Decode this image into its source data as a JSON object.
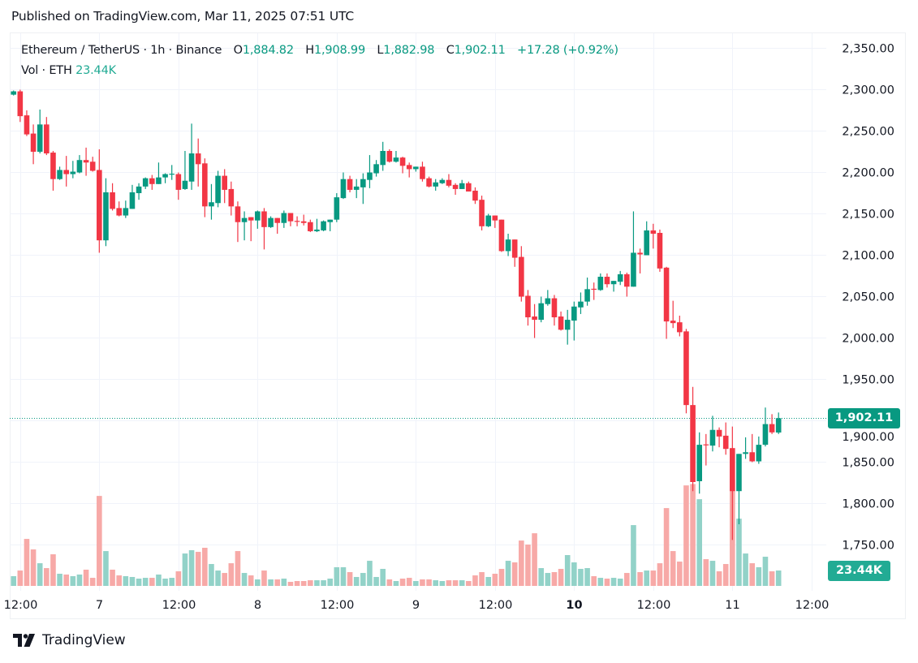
{
  "header": {
    "published": "Published on TradingView.com, Mar 11, 2025 07:51 UTC"
  },
  "legend": {
    "symbol": "Ethereum / TetherUS · 1h · Binance",
    "open_label": "O",
    "open": "1,884.82",
    "high_label": "H",
    "high": "1,908.99",
    "low_label": "L",
    "low": "1,882.98",
    "close_label": "C",
    "close": "1,902.11",
    "change": "+17.28 (+0.92%)",
    "volume_label": "Vol · ETH",
    "volume": "23.44K"
  },
  "colors": {
    "up": "#089981",
    "down": "#F23645",
    "up_volume": "#92d2c8",
    "down_volume": "#f7a9a7",
    "price_badge": "#089981",
    "volume_badge": "#22ab94"
  },
  "footer": {
    "logo_text": "TradingView",
    "logo_icon": "tradingview-logo-icon"
  },
  "chart_data": {
    "type": "candlestick",
    "title": "",
    "interval": "1h",
    "grid": true,
    "ylim": [
      1700,
      2370
    ],
    "y_ticks": [
      "2,350.00",
      "2,300.00",
      "2,250.00",
      "2,200.00",
      "2,150.00",
      "2,100.00",
      "2,050.00",
      "2,000.00",
      "1,950.00",
      "1,900.00",
      "1,850.00",
      "1,800.00",
      "1,750.00"
    ],
    "y_tick_values": [
      2350,
      2300,
      2250,
      2200,
      2150,
      2100,
      2050,
      2000,
      1950,
      1900,
      1850,
      1800,
      1750
    ],
    "x_ticks": [
      "12:00",
      "7",
      "12:00",
      "8",
      "12:00",
      "9",
      "12:00",
      "10",
      "12:00",
      "11",
      "12:00"
    ],
    "last_price": 1902.11,
    "last_price_label": "1,902.11",
    "last_volume_label": "23.44K",
    "fields": [
      "open",
      "high",
      "low",
      "close",
      "volume_k"
    ],
    "candles": [
      [
        2293,
        2298,
        2292,
        2297,
        14.8
      ],
      [
        2297,
        2299,
        2260,
        2267,
        23.4
      ],
      [
        2268,
        2274,
        2243,
        2245,
        71.5
      ],
      [
        2246,
        2257,
        2209,
        2224,
        55.5
      ],
      [
        2224,
        2275,
        2222,
        2257,
        34.5
      ],
      [
        2257,
        2266,
        2220,
        2222,
        27.1
      ],
      [
        2223,
        2225,
        2177,
        2191,
        48.1
      ],
      [
        2191,
        2206,
        2190,
        2202,
        18.5
      ],
      [
        2202,
        2219,
        2182,
        2197,
        17.3
      ],
      [
        2197,
        2213,
        2192,
        2200,
        14.8
      ],
      [
        2199,
        2220,
        2198,
        2214,
        17.3
      ],
      [
        2214,
        2229,
        2195,
        2211,
        24.7
      ],
      [
        2212,
        2218,
        2200,
        2201,
        12.3
      ],
      [
        2202,
        2227,
        2102,
        2117,
        136.9
      ],
      [
        2117,
        2192,
        2110,
        2175,
        53
      ],
      [
        2175,
        2186,
        2153,
        2155,
        24.7
      ],
      [
        2156,
        2164,
        2146,
        2147,
        16
      ],
      [
        2147,
        2165,
        2144,
        2156,
        14.8
      ],
      [
        2155,
        2184,
        2155,
        2175,
        13.6
      ],
      [
        2174,
        2186,
        2166,
        2182,
        11.1
      ],
      [
        2182,
        2193,
        2179,
        2192,
        12.3
      ],
      [
        2192,
        2196,
        2178,
        2185,
        12.3
      ],
      [
        2185,
        2211,
        2185,
        2193,
        17.3
      ],
      [
        2193,
        2198,
        2186,
        2197,
        11.1
      ],
      [
        2197,
        2208,
        2190,
        2197.5,
        12.3
      ],
      [
        2197,
        2199,
        2166,
        2178,
        22.2
      ],
      [
        2179,
        2225,
        2178,
        2189,
        49.3
      ],
      [
        2188,
        2258,
        2178,
        2222,
        54.3
      ],
      [
        2222,
        2240,
        2182,
        2209,
        51.8
      ],
      [
        2210,
        2216,
        2145,
        2158,
        58
      ],
      [
        2158,
        2185,
        2142,
        2163,
        33.3
      ],
      [
        2162,
        2201,
        2157,
        2195,
        23.4
      ],
      [
        2195,
        2203,
        2162,
        2178,
        19.7
      ],
      [
        2179,
        2188,
        2147,
        2158,
        34.5
      ],
      [
        2158,
        2164,
        2115,
        2139,
        53
      ],
      [
        2139,
        2152,
        2117,
        2144,
        19.7
      ],
      [
        2145,
        2145,
        2116,
        2141,
        16
      ],
      [
        2141,
        2153,
        2131,
        2152,
        9.9
      ],
      [
        2152,
        2156,
        2106,
        2133,
        23.4
      ],
      [
        2133,
        2146,
        2132,
        2144,
        9.9
      ],
      [
        2144,
        2144,
        2125,
        2138,
        9.9
      ],
      [
        2138,
        2153,
        2132,
        2150,
        11.1
      ],
      [
        2150,
        2150,
        2134,
        2140,
        6.2
      ],
      [
        2140.5,
        2146,
        2134,
        2140,
        7.4
      ],
      [
        2140,
        2148,
        2135,
        2138,
        7.4
      ],
      [
        2139,
        2142,
        2127,
        2128,
        8.6
      ],
      [
        2128,
        2143,
        2127,
        2130,
        8.6
      ],
      [
        2129,
        2141,
        2128,
        2140,
        8.6
      ],
      [
        2139,
        2142,
        2128,
        2142,
        11.1
      ],
      [
        2142,
        2174,
        2139,
        2169,
        28.4
      ],
      [
        2168,
        2199,
        2167,
        2191,
        28.4
      ],
      [
        2191,
        2195,
        2175,
        2178,
        21
      ],
      [
        2178,
        2191,
        2168,
        2182,
        13.6
      ],
      [
        2181,
        2198,
        2161,
        2191,
        19.7
      ],
      [
        2190,
        2220,
        2180,
        2199,
        38.2
      ],
      [
        2198,
        2214,
        2194,
        2209,
        13.6
      ],
      [
        2208,
        2236,
        2201,
        2225,
        25.9
      ],
      [
        2225,
        2227,
        2211,
        2212,
        9.9
      ],
      [
        2212,
        2225,
        2211,
        2217,
        7.4
      ],
      [
        2217,
        2218,
        2198,
        2207,
        11.1
      ],
      [
        2208,
        2211,
        2193,
        2203,
        12.3
      ],
      [
        2203,
        2206,
        2200,
        2206,
        7.4
      ],
      [
        2206,
        2212,
        2188,
        2191,
        9.9
      ],
      [
        2192,
        2194,
        2181,
        2182,
        9.9
      ],
      [
        2182,
        2191,
        2177,
        2187,
        8.6
      ],
      [
        2186,
        2192,
        2185,
        2190,
        7.4
      ],
      [
        2190,
        2197,
        2181,
        2183,
        8.6
      ],
      [
        2184,
        2186,
        2172,
        2179,
        8.6
      ],
      [
        2179,
        2190,
        2179,
        2186,
        8.6
      ],
      [
        2186,
        2188,
        2176,
        2176,
        7.4
      ],
      [
        2177,
        2181,
        2161,
        2165,
        16
      ],
      [
        2166,
        2171,
        2129,
        2134,
        21
      ],
      [
        2134,
        2149,
        2133,
        2147,
        13.6
      ],
      [
        2147,
        2147,
        2132,
        2141,
        18.5
      ],
      [
        2142,
        2142,
        2103,
        2104,
        25.9
      ],
      [
        2104,
        2125,
        2098,
        2118,
        38.2
      ],
      [
        2118,
        2118,
        2085,
        2096,
        35.8
      ],
      [
        2097,
        2110,
        2043,
        2049,
        69
      ],
      [
        2050,
        2057,
        2014,
        2024,
        62.9
      ],
      [
        2025,
        2040,
        1999,
        2021,
        80.1
      ],
      [
        2021,
        2049,
        2018,
        2041,
        27.1
      ],
      [
        2040,
        2057,
        2038,
        2047,
        19.7
      ],
      [
        2047,
        2051,
        2014,
        2024,
        21
      ],
      [
        2025,
        2031,
        2008,
        2009,
        25.9
      ],
      [
        2009,
        2033,
        1991,
        2021,
        46.9
      ],
      [
        2020,
        2043,
        1996,
        2037,
        35.8
      ],
      [
        2036,
        2054,
        2028,
        2043,
        25.9
      ],
      [
        2043,
        2072,
        2038,
        2058,
        27.1
      ],
      [
        2058.5,
        2066,
        2045,
        2058,
        14.8
      ],
      [
        2057,
        2077,
        2056,
        2073,
        12.3
      ],
      [
        2073,
        2077,
        2060,
        2064,
        11.1
      ],
      [
        2064,
        2068,
        2055,
        2068,
        12.3
      ],
      [
        2067,
        2080,
        2063,
        2076,
        11.1
      ],
      [
        2076,
        2078,
        2049,
        2061,
        19.7
      ],
      [
        2061,
        2152,
        2061,
        2102,
        92.5
      ],
      [
        2102,
        2107,
        2077,
        2100,
        21
      ],
      [
        2099,
        2140,
        2099,
        2129,
        23.4
      ],
      [
        2129,
        2137,
        2107,
        2125,
        23.4
      ],
      [
        2126,
        2130,
        2079,
        2083,
        34.5
      ],
      [
        2084,
        2085,
        1998,
        2019,
        118.4
      ],
      [
        2020,
        2044,
        2011,
        2017,
        53
      ],
      [
        2018,
        2026,
        2001,
        2006,
        37
      ],
      [
        2007,
        2010,
        1908,
        1918,
        152.9
      ],
      [
        1918,
        1940,
        1814,
        1825,
        155
      ],
      [
        1826,
        1885,
        1811,
        1870,
        131.9
      ],
      [
        1870.5,
        1883,
        1845,
        1870,
        40.7
      ],
      [
        1869,
        1905,
        1862,
        1888,
        38.2
      ],
      [
        1888,
        1891,
        1867,
        1880,
        22.2
      ],
      [
        1881,
        1897,
        1858,
        1865,
        33.3
      ],
      [
        1866,
        1892,
        1755,
        1814,
        161.7
      ],
      [
        1814,
        1859,
        1774,
        1859,
        102.3
      ],
      [
        1859,
        1879,
        1853,
        1861,
        49.3
      ],
      [
        1861,
        1883,
        1849,
        1850,
        34.5
      ],
      [
        1850,
        1880,
        1847,
        1870,
        28.4
      ],
      [
        1870,
        1915,
        1868,
        1895,
        44.4
      ],
      [
        1895,
        1907,
        1883,
        1885,
        22.2
      ],
      [
        1884.82,
        1908.99,
        1882.98,
        1902.11,
        23.44
      ]
    ]
  }
}
